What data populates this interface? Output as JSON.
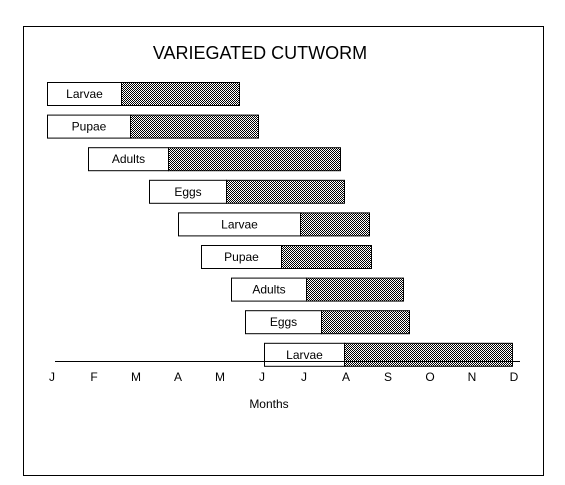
{
  "chart_data": {
    "type": "bar",
    "orientation": "horizontal-gantt",
    "title": "VARIEGATED CUTWORM",
    "xlabel": "Months",
    "ylabel": "",
    "x_tick_labels": [
      "J",
      "F",
      "M",
      "A",
      "M",
      "J",
      "J",
      "A",
      "S",
      "O",
      "N",
      "D"
    ],
    "xlim": [
      0,
      11
    ],
    "grid": false,
    "legend": "none",
    "colors": {
      "solid": "#ffffff",
      "stippled": "#000000",
      "background": "#ffffff"
    },
    "series": [
      {
        "label": "Larvae",
        "start": -0.12,
        "solid_end": 1.65,
        "end": 4.45
      },
      {
        "label": "Pupae",
        "start": -0.12,
        "solid_end": 1.85,
        "end": 4.9
      },
      {
        "label": "Adults",
        "start": 0.85,
        "solid_end": 2.75,
        "end": 6.85
      },
      {
        "label": "Eggs",
        "start": 2.3,
        "solid_end": 4.15,
        "end": 6.95
      },
      {
        "label": "Larvae",
        "start": 3.0,
        "solid_end": 5.9,
        "end": 7.55
      },
      {
        "label": "Pupae",
        "start": 3.55,
        "solid_end": 5.45,
        "end": 7.6
      },
      {
        "label": "Adults",
        "start": 4.25,
        "solid_end": 6.05,
        "end": 8.35
      },
      {
        "label": "Eggs",
        "start": 4.6,
        "solid_end": 6.4,
        "end": 8.5
      },
      {
        "label": "Larvae",
        "start": 5.05,
        "solid_end": 6.95,
        "end": 10.95
      }
    ]
  }
}
